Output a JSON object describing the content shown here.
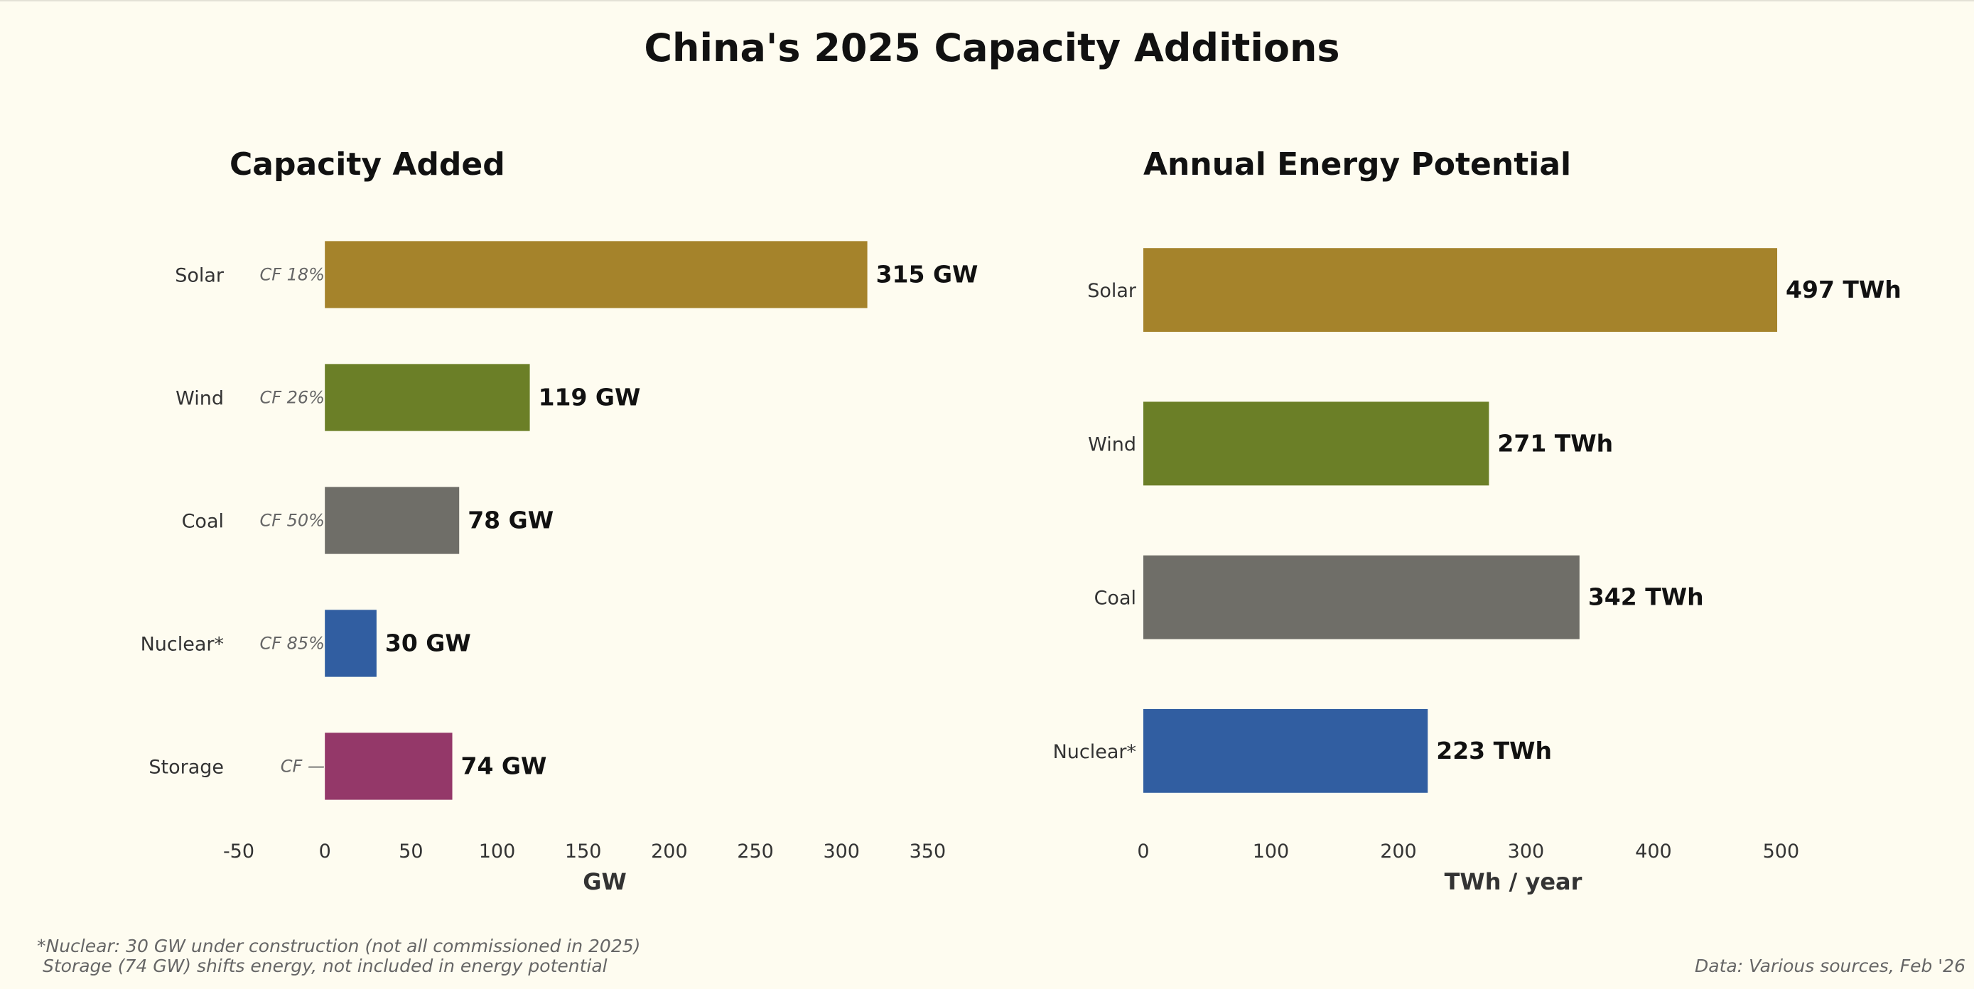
{
  "title": "China's 2025 Capacity Additions",
  "colors": {
    "background": "#fefcf0",
    "Solar": "#a5832b",
    "Wind": "#6b7f27",
    "Coal": "#6f6e68",
    "Nuclear": "#315ea1",
    "Storage": "#943869"
  },
  "chart_data": [
    {
      "type": "bar",
      "orientation": "horizontal",
      "title": "Capacity Added",
      "categories": [
        "Solar",
        "Wind",
        "Coal",
        "Nuclear*",
        "Storage"
      ],
      "values": [
        315,
        119,
        78,
        30,
        74
      ],
      "value_labels": [
        "315 GW",
        "119 GW",
        "78 GW",
        "30 GW",
        "74 GW"
      ],
      "cf_labels": [
        "CF 18%",
        "CF 26%",
        "CF 50%",
        "CF 85%",
        "CF —"
      ],
      "color_keys": [
        "Solar",
        "Wind",
        "Coal",
        "Nuclear",
        "Storage"
      ],
      "xlabel": "GW",
      "xlim": [
        -50,
        375
      ],
      "xticks": [
        -50,
        0,
        50,
        100,
        150,
        200,
        250,
        300,
        350
      ],
      "grid": false
    },
    {
      "type": "bar",
      "orientation": "horizontal",
      "title": "Annual Energy Potential",
      "categories": [
        "Solar",
        "Wind",
        "Coal",
        "Nuclear*"
      ],
      "values": [
        497,
        271,
        342,
        223
      ],
      "value_labels": [
        "497 TWh",
        "271 TWh",
        "342 TWh",
        "223 TWh"
      ],
      "color_keys": [
        "Solar",
        "Wind",
        "Coal",
        "Nuclear"
      ],
      "xlabel": "TWh / year",
      "xlim": [
        0,
        580
      ],
      "xticks": [
        0,
        100,
        200,
        300,
        400,
        500
      ],
      "grid": false
    }
  ],
  "footnotes": {
    "line1": "*Nuclear: 30 GW under construction (not all commissioned in 2025)",
    "line2": " Storage (74 GW) shifts energy, not included in energy potential",
    "source": "Data: Various sources, Feb '26"
  }
}
